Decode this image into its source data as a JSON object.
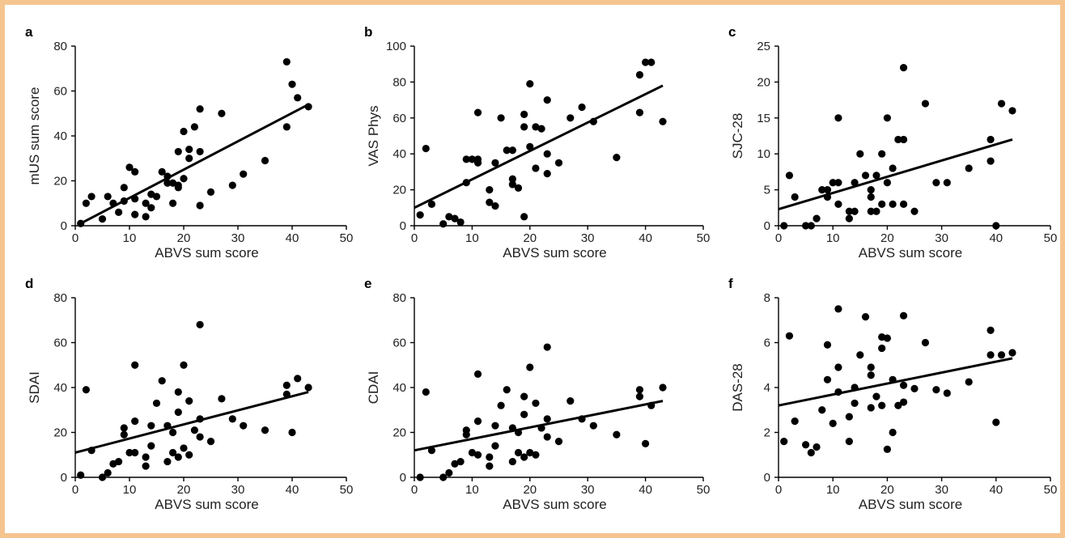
{
  "chart_data": [
    {
      "panel": "a",
      "type": "scatter",
      "xlabel": "ABVS sum score",
      "ylabel": "mUS sum score",
      "xlim": [
        0,
        50
      ],
      "ylim": [
        0,
        80
      ],
      "xticks": [
        0,
        10,
        20,
        30,
        40,
        50
      ],
      "yticks": [
        0,
        20,
        40,
        60,
        80
      ],
      "fit_line": {
        "x": [
          1,
          43
        ],
        "y": [
          1,
          54
        ]
      },
      "points": [
        [
          1,
          1
        ],
        [
          2,
          10
        ],
        [
          3,
          13
        ],
        [
          5,
          3
        ],
        [
          6,
          13
        ],
        [
          7,
          10
        ],
        [
          8,
          6
        ],
        [
          9,
          11
        ],
        [
          9,
          17
        ],
        [
          10,
          26
        ],
        [
          11,
          5
        ],
        [
          11,
          24
        ],
        [
          11,
          12
        ],
        [
          13,
          10
        ],
        [
          13,
          4
        ],
        [
          14,
          14
        ],
        [
          14,
          8
        ],
        [
          15,
          13
        ],
        [
          16,
          24
        ],
        [
          17,
          22
        ],
        [
          17,
          19
        ],
        [
          18,
          10
        ],
        [
          18,
          19
        ],
        [
          19,
          18
        ],
        [
          19,
          33
        ],
        [
          19,
          17
        ],
        [
          20,
          42
        ],
        [
          20,
          21
        ],
        [
          21,
          30
        ],
        [
          21,
          34
        ],
        [
          22,
          44
        ],
        [
          23,
          52
        ],
        [
          23,
          9
        ],
        [
          23,
          33
        ],
        [
          25,
          15
        ],
        [
          27,
          50
        ],
        [
          29,
          18
        ],
        [
          31,
          23
        ],
        [
          35,
          29
        ],
        [
          39,
          73
        ],
        [
          39,
          44
        ],
        [
          40,
          63
        ],
        [
          41,
          57
        ],
        [
          43,
          53
        ]
      ]
    },
    {
      "panel": "b",
      "type": "scatter",
      "xlabel": "ABVS sum score",
      "ylabel": "VAS Phys",
      "xlim": [
        0,
        50
      ],
      "ylim": [
        0,
        100
      ],
      "xticks": [
        0,
        10,
        20,
        30,
        40,
        50
      ],
      "yticks": [
        0,
        20,
        40,
        60,
        80,
        100
      ],
      "fit_line": {
        "x": [
          0,
          43
        ],
        "y": [
          10,
          78
        ]
      },
      "points": [
        [
          1,
          6
        ],
        [
          2,
          43
        ],
        [
          3,
          12
        ],
        [
          5,
          1
        ],
        [
          6,
          5
        ],
        [
          7,
          4
        ],
        [
          8,
          2
        ],
        [
          9,
          24
        ],
        [
          9,
          37
        ],
        [
          10,
          37
        ],
        [
          11,
          35
        ],
        [
          11,
          37
        ],
        [
          11,
          63
        ],
        [
          13,
          20
        ],
        [
          13,
          13
        ],
        [
          14,
          11
        ],
        [
          14,
          35
        ],
        [
          15,
          60
        ],
        [
          16,
          42
        ],
        [
          17,
          42
        ],
        [
          17,
          26
        ],
        [
          17,
          23
        ],
        [
          18,
          21
        ],
        [
          19,
          5
        ],
        [
          19,
          62
        ],
        [
          19,
          55
        ],
        [
          20,
          79
        ],
        [
          20,
          44
        ],
        [
          21,
          55
        ],
        [
          21,
          32
        ],
        [
          22,
          54
        ],
        [
          23,
          29
        ],
        [
          23,
          70
        ],
        [
          23,
          40
        ],
        [
          25,
          35
        ],
        [
          27,
          60
        ],
        [
          29,
          66
        ],
        [
          31,
          58
        ],
        [
          35,
          38
        ],
        [
          39,
          84
        ],
        [
          39,
          63
        ],
        [
          40,
          91
        ],
        [
          41,
          91
        ],
        [
          43,
          58
        ]
      ]
    },
    {
      "panel": "c",
      "type": "scatter",
      "xlabel": "ABVS sum score",
      "ylabel": "SJC-28",
      "xlim": [
        0,
        50
      ],
      "ylim": [
        0,
        25
      ],
      "xticks": [
        0,
        10,
        20,
        30,
        40,
        50
      ],
      "yticks": [
        0,
        5,
        10,
        15,
        20,
        25
      ],
      "fit_line": {
        "x": [
          0,
          43
        ],
        "y": [
          2.3,
          12
        ]
      },
      "points": [
        [
          1,
          0
        ],
        [
          2,
          7
        ],
        [
          3,
          4
        ],
        [
          5,
          0
        ],
        [
          6,
          0
        ],
        [
          7,
          1
        ],
        [
          8,
          5
        ],
        [
          9,
          4
        ],
        [
          9,
          5
        ],
        [
          10,
          6
        ],
        [
          11,
          6
        ],
        [
          11,
          15
        ],
        [
          11,
          3
        ],
        [
          13,
          2
        ],
        [
          13,
          1
        ],
        [
          14,
          2
        ],
        [
          14,
          6
        ],
        [
          15,
          10
        ],
        [
          16,
          7
        ],
        [
          17,
          5
        ],
        [
          17,
          4
        ],
        [
          17,
          2
        ],
        [
          18,
          7
        ],
        [
          18,
          2
        ],
        [
          19,
          10
        ],
        [
          19,
          3
        ],
        [
          20,
          15
        ],
        [
          20,
          6
        ],
        [
          21,
          8
        ],
        [
          21,
          3
        ],
        [
          22,
          12
        ],
        [
          23,
          22
        ],
        [
          23,
          12
        ],
        [
          23,
          3
        ],
        [
          25,
          2
        ],
        [
          27,
          17
        ],
        [
          29,
          6
        ],
        [
          31,
          6
        ],
        [
          35,
          8
        ],
        [
          39,
          12
        ],
        [
          39,
          9
        ],
        [
          40,
          0
        ],
        [
          41,
          17
        ],
        [
          43,
          16
        ]
      ]
    },
    {
      "panel": "d",
      "type": "scatter",
      "xlabel": "ABVS sum score",
      "ylabel": "SDAI",
      "xlim": [
        0,
        50
      ],
      "ylim": [
        0,
        80
      ],
      "xticks": [
        0,
        10,
        20,
        30,
        40,
        50
      ],
      "yticks": [
        0,
        20,
        40,
        60,
        80
      ],
      "fit_line": {
        "x": [
          0,
          43
        ],
        "y": [
          11,
          38
        ]
      },
      "points": [
        [
          1,
          1
        ],
        [
          2,
          39
        ],
        [
          3,
          12
        ],
        [
          5,
          0
        ],
        [
          6,
          2
        ],
        [
          7,
          6
        ],
        [
          8,
          7
        ],
        [
          9,
          22
        ],
        [
          9,
          19
        ],
        [
          10,
          11
        ],
        [
          11,
          11
        ],
        [
          11,
          25
        ],
        [
          11,
          50
        ],
        [
          13,
          9
        ],
        [
          13,
          5
        ],
        [
          14,
          23
        ],
        [
          14,
          14
        ],
        [
          15,
          33
        ],
        [
          16,
          43
        ],
        [
          17,
          23
        ],
        [
          17,
          7
        ],
        [
          18,
          11
        ],
        [
          18,
          20
        ],
        [
          19,
          38
        ],
        [
          19,
          29
        ],
        [
          19,
          9
        ],
        [
          20,
          50
        ],
        [
          20,
          13
        ],
        [
          21,
          34
        ],
        [
          21,
          10
        ],
        [
          22,
          21
        ],
        [
          23,
          68
        ],
        [
          23,
          18
        ],
        [
          23,
          26
        ],
        [
          25,
          16
        ],
        [
          27,
          35
        ],
        [
          29,
          26
        ],
        [
          31,
          23
        ],
        [
          35,
          21
        ],
        [
          39,
          41
        ],
        [
          39,
          37
        ],
        [
          40,
          20
        ],
        [
          41,
          44
        ],
        [
          43,
          40
        ]
      ]
    },
    {
      "panel": "e",
      "type": "scatter",
      "xlabel": "ABVS sum score",
      "ylabel": "CDAI",
      "xlim": [
        0,
        50
      ],
      "ylim": [
        0,
        80
      ],
      "xticks": [
        0,
        10,
        20,
        30,
        40,
        50
      ],
      "yticks": [
        0,
        20,
        40,
        60,
        80
      ],
      "fit_line": {
        "x": [
          0,
          43
        ],
        "y": [
          12,
          34
        ]
      },
      "points": [
        [
          1,
          0
        ],
        [
          2,
          38
        ],
        [
          3,
          12
        ],
        [
          5,
          0
        ],
        [
          6,
          2
        ],
        [
          7,
          6
        ],
        [
          8,
          7
        ],
        [
          9,
          21
        ],
        [
          9,
          19
        ],
        [
          10,
          11
        ],
        [
          11,
          10
        ],
        [
          11,
          25
        ],
        [
          11,
          46
        ],
        [
          13,
          9
        ],
        [
          13,
          5
        ],
        [
          14,
          23
        ],
        [
          14,
          14
        ],
        [
          15,
          32
        ],
        [
          16,
          39
        ],
        [
          17,
          22
        ],
        [
          17,
          7
        ],
        [
          18,
          11
        ],
        [
          18,
          20
        ],
        [
          19,
          36
        ],
        [
          19,
          28
        ],
        [
          19,
          9
        ],
        [
          20,
          49
        ],
        [
          20,
          11
        ],
        [
          21,
          33
        ],
        [
          21,
          10
        ],
        [
          22,
          22
        ],
        [
          23,
          58
        ],
        [
          23,
          18
        ],
        [
          23,
          26
        ],
        [
          25,
          16
        ],
        [
          27,
          34
        ],
        [
          29,
          26
        ],
        [
          31,
          23
        ],
        [
          35,
          19
        ],
        [
          39,
          39
        ],
        [
          39,
          36
        ],
        [
          40,
          15
        ],
        [
          41,
          32
        ],
        [
          43,
          40
        ]
      ]
    },
    {
      "panel": "f",
      "type": "scatter",
      "xlabel": "ABVS sum score",
      "ylabel": "DAS-28",
      "xlim": [
        0,
        50
      ],
      "ylim": [
        0,
        8
      ],
      "xticks": [
        0,
        10,
        20,
        30,
        40,
        50
      ],
      "yticks": [
        0,
        2,
        4,
        6,
        8
      ],
      "fit_line": {
        "x": [
          0,
          43
        ],
        "y": [
          3.2,
          5.3
        ]
      },
      "points": [
        [
          1,
          1.6
        ],
        [
          2,
          6.3
        ],
        [
          3,
          2.5
        ],
        [
          5,
          1.45
        ],
        [
          6,
          1.1
        ],
        [
          7,
          1.35
        ],
        [
          8,
          3.0
        ],
        [
          9,
          4.35
        ],
        [
          9,
          5.9
        ],
        [
          10,
          2.4
        ],
        [
          11,
          7.5
        ],
        [
          11,
          4.9
        ],
        [
          11,
          3.8
        ],
        [
          13,
          1.6
        ],
        [
          13,
          2.7
        ],
        [
          14,
          3.3
        ],
        [
          14,
          4.0
        ],
        [
          15,
          5.45
        ],
        [
          16,
          7.15
        ],
        [
          17,
          4.9
        ],
        [
          17,
          4.55
        ],
        [
          17,
          3.1
        ],
        [
          18,
          3.6
        ],
        [
          19,
          6.25
        ],
        [
          19,
          5.75
        ],
        [
          19,
          3.2
        ],
        [
          20,
          6.2
        ],
        [
          20,
          1.25
        ],
        [
          21,
          4.35
        ],
        [
          21,
          2.0
        ],
        [
          22,
          3.2
        ],
        [
          23,
          7.2
        ],
        [
          23,
          4.1
        ],
        [
          23,
          3.35
        ],
        [
          25,
          3.95
        ],
        [
          27,
          6.0
        ],
        [
          29,
          3.9
        ],
        [
          31,
          3.75
        ],
        [
          35,
          4.25
        ],
        [
          39,
          6.55
        ],
        [
          39,
          5.45
        ],
        [
          40,
          2.45
        ],
        [
          41,
          5.45
        ],
        [
          43,
          5.55
        ]
      ]
    }
  ]
}
